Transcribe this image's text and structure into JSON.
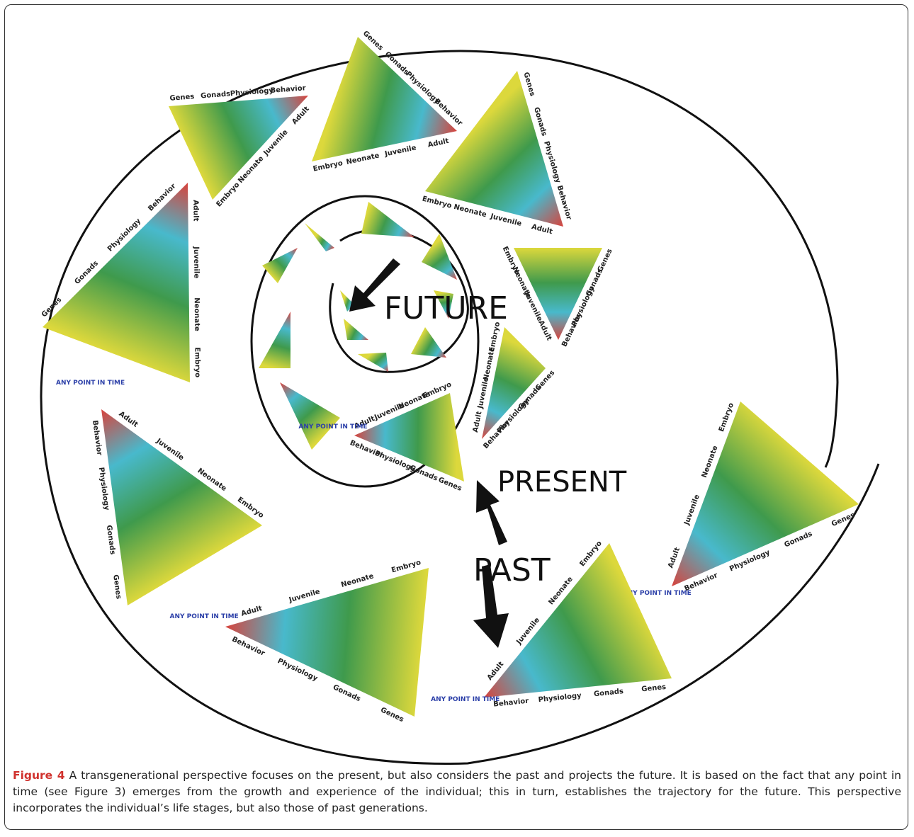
{
  "figure": {
    "words": {
      "future": "FUTURE",
      "present": "PRESENT",
      "past": "PAST"
    },
    "triangles": [
      {
        "labels": [
          "Behavior",
          "Physiology",
          "Gonads",
          "Genes",
          "Adult",
          "Juvenile",
          "Neonate",
          "Embryo"
        ],
        "marker": "ANY POINT IN TIME"
      },
      {
        "labels": [
          "Behavior",
          "Physiology",
          "Gonads",
          "Genes",
          "Adult",
          "Juvenile",
          "Neonate",
          "Embryo"
        ],
        "marker": "ANY POINT IN TIME"
      },
      {
        "labels": [
          "Behavior",
          "Physiology",
          "Gonads",
          "Genes",
          "Adult",
          "Juvenile",
          "Neonate",
          "Embryo"
        ],
        "marker": "ANY POINT IN TIME"
      },
      {
        "labels": [
          "Behavior",
          "Physiology",
          "Gonads",
          "Genes",
          "Adult",
          "Juvenile",
          "Neonate",
          "Embryo"
        ],
        "marker": "ANY POINT IN TIME"
      },
      {
        "labels": [
          "Behavior",
          "Physiology",
          "Gonads",
          "Genes",
          "Adult",
          "Juvenile",
          "Neonate",
          "Embryo"
        ]
      },
      {
        "labels": [
          "Behavior",
          "Physiology",
          "Gonads",
          "Genes",
          "Adult",
          "Juvenile",
          "Neonate",
          "Embryo"
        ]
      },
      {
        "labels": [
          "Behavior",
          "Physiology",
          "Gonads",
          "Genes",
          "Adult",
          "Juvenile",
          "Neonate",
          "Embryo"
        ]
      },
      {
        "labels": [
          "Behavior",
          "Physiology",
          "Gonads",
          "Genes",
          "Adult",
          "Juvenile",
          "Neonate",
          "Embryo"
        ]
      },
      {
        "labels": [
          "Behavior",
          "Physiology",
          "Gonads",
          "Genes",
          "Adult",
          "Juvenile",
          "Neonate",
          "Embryo"
        ]
      },
      {
        "labels": [
          "Behavior",
          "Physiology",
          "Gonads",
          "Genes",
          "Adult",
          "Juvenile",
          "Neonate",
          "Embryo"
        ]
      },
      {
        "labels": [
          "Behavior",
          "Physiology",
          "Gonads",
          "Genes",
          "Adult",
          "Juvenile",
          "Neonate",
          "Embryo"
        ],
        "marker": "ANY POINT IN TIME"
      }
    ]
  },
  "caption": {
    "label": "Figure 4",
    "text": "A transgenerational perspective focuses on the present, but also considers the past and projects the future. It is based on the fact that any point in time (see Figure 3) emerges from the growth and experience of the individual; this in turn, establishes the trajectory for the future. This perspective incorporates the individual’s life stages, but also those of past generations."
  }
}
